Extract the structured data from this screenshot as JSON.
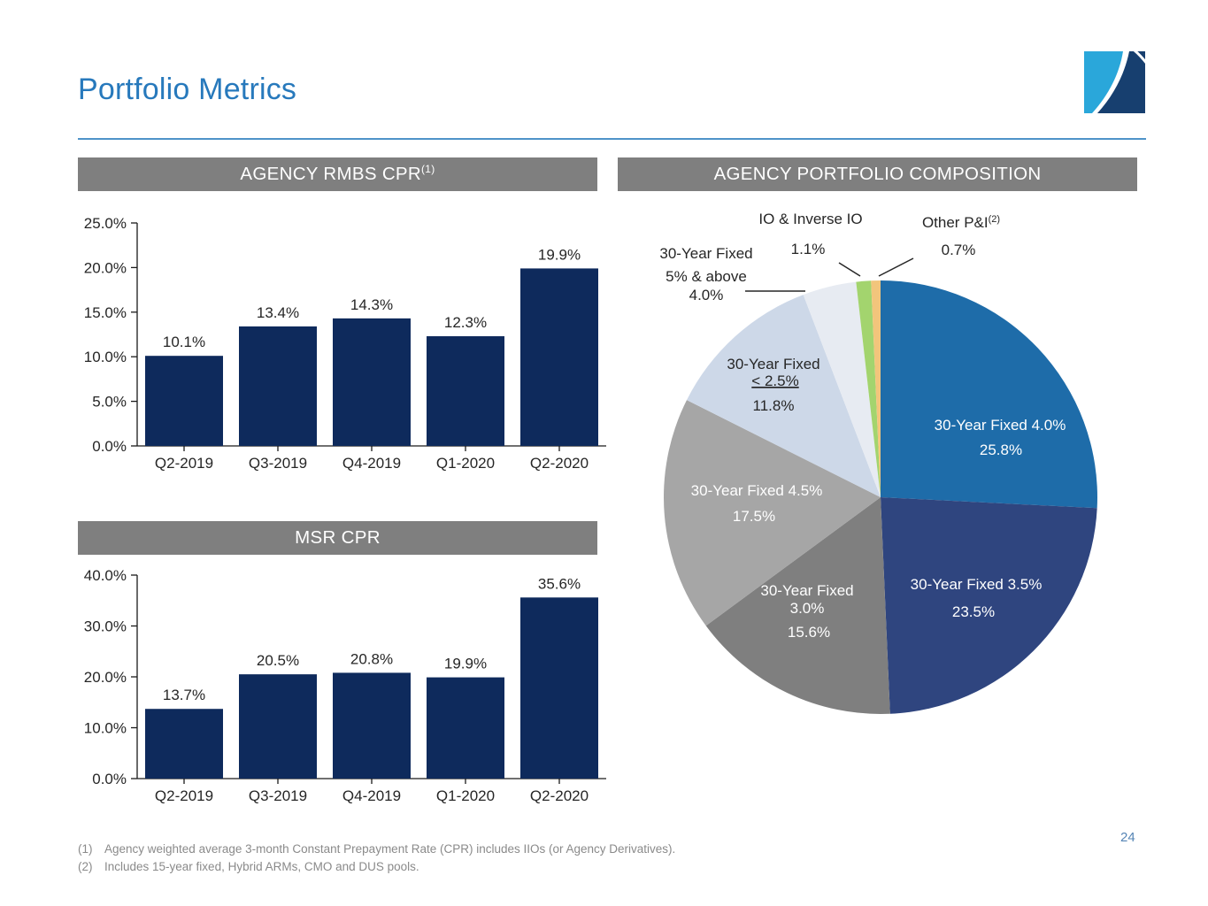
{
  "slide": {
    "title": "Portfolio Metrics",
    "page_number": "24"
  },
  "footnotes": [
    {
      "marker": "(1)",
      "text": "Agency weighted average 3-month Constant Prepayment Rate (CPR) includes IIOs (or Agency Derivatives)."
    },
    {
      "marker": "(2)",
      "text": "Includes 15-year fixed, Hybrid ARMs, CMO and DUS pools."
    }
  ],
  "colors": {
    "title_blue": "#2779BC",
    "divider_blue": "#4E93C8",
    "header_bar_gray": "#7F7F7F",
    "header_text": "#FFFFFF",
    "bar_navy": "#0E2A5C",
    "axis_black": "#1A1A1A",
    "label_dark": "#262626",
    "footnote_gray": "#8A8A8A",
    "page_number_blue": "#5585B5",
    "logo_light_blue": "#2AA7DA",
    "logo_dark_blue": "#173F6F"
  },
  "chart_data": [
    {
      "type": "bar",
      "title": "AGENCY RMBS CPR",
      "title_superscript": "(1)",
      "categories": [
        "Q2-2019",
        "Q3-2019",
        "Q4-2019",
        "Q1-2020",
        "Q2-2020"
      ],
      "values": [
        10.1,
        13.4,
        14.3,
        12.3,
        19.9
      ],
      "value_labels": [
        "10.1%",
        "13.4%",
        "14.3%",
        "12.3%",
        "19.9%"
      ],
      "ylim": [
        0,
        25
      ],
      "ytick_step": 5,
      "ytick_labels": [
        "0.0%",
        "5.0%",
        "10.0%",
        "15.0%",
        "20.0%",
        "25.0%"
      ],
      "bar_color": "#0E2A5C",
      "grid": false,
      "xlabel": "",
      "ylabel": ""
    },
    {
      "type": "bar",
      "title": "MSR CPR",
      "title_superscript": "",
      "categories": [
        "Q2-2019",
        "Q3-2019",
        "Q4-2019",
        "Q1-2020",
        "Q2-2020"
      ],
      "values": [
        13.7,
        20.5,
        20.8,
        19.9,
        35.6
      ],
      "value_labels": [
        "13.7%",
        "20.5%",
        "20.8%",
        "19.9%",
        "35.6%"
      ],
      "ylim": [
        0,
        40
      ],
      "ytick_step": 10,
      "ytick_labels": [
        "0.0%",
        "10.0%",
        "20.0%",
        "30.0%",
        "40.0%"
      ],
      "bar_color": "#0E2A5C",
      "grid": false,
      "xlabel": "",
      "ylabel": ""
    },
    {
      "type": "pie",
      "title": "AGENCY PORTFOLIO COMPOSITION",
      "start_angle_deg": 0,
      "direction": "clockwise",
      "slices": [
        {
          "name": "30-Year Fixed 4.0%",
          "value": 25.8,
          "display_lines": [
            "30-Year Fixed 4.0%",
            "25.8%"
          ],
          "color": "#1E6CA9",
          "label_placement": "inside"
        },
        {
          "name": "30-Year Fixed 3.5%",
          "value": 23.5,
          "display_lines": [
            "30-Year Fixed 3.5%",
            "23.5%"
          ],
          "color": "#2F457F",
          "label_placement": "inside"
        },
        {
          "name": "30-Year Fixed 3.0%",
          "value": 15.6,
          "display_lines": [
            "30-Year Fixed",
            "3.0%",
            "15.6%"
          ],
          "color": "#7F7F7F",
          "label_placement": "inside"
        },
        {
          "name": "30-Year Fixed 4.5%",
          "value": 17.5,
          "display_lines": [
            "30-Year Fixed 4.5%",
            "17.5%"
          ],
          "color": "#A6A6A6",
          "label_placement": "inside"
        },
        {
          "name": "30-Year Fixed < 2.5%",
          "value": 11.8,
          "display_lines": [
            "30-Year Fixed",
            "< 2.5%",
            "11.8%"
          ],
          "color": "#CDD8E8",
          "label_placement": "inside",
          "underline_line": 1
        },
        {
          "name": "30-Year Fixed 5% & above",
          "value": 4.0,
          "display_lines": [
            "30-Year Fixed",
            "5% & above",
            "4.0%"
          ],
          "color": "#E7EBF2",
          "label_placement": "outside"
        },
        {
          "name": "IO & Inverse IO",
          "value": 1.1,
          "display_lines": [
            "IO & Inverse IO",
            "1.1%"
          ],
          "color": "#A3D46E",
          "label_placement": "outside"
        },
        {
          "name": "Other P&I",
          "value": 0.7,
          "name_superscript": "(2)",
          "display_lines": [
            "Other P&I",
            "0.7%"
          ],
          "color": "#F2C57C",
          "label_placement": "outside"
        }
      ]
    }
  ]
}
